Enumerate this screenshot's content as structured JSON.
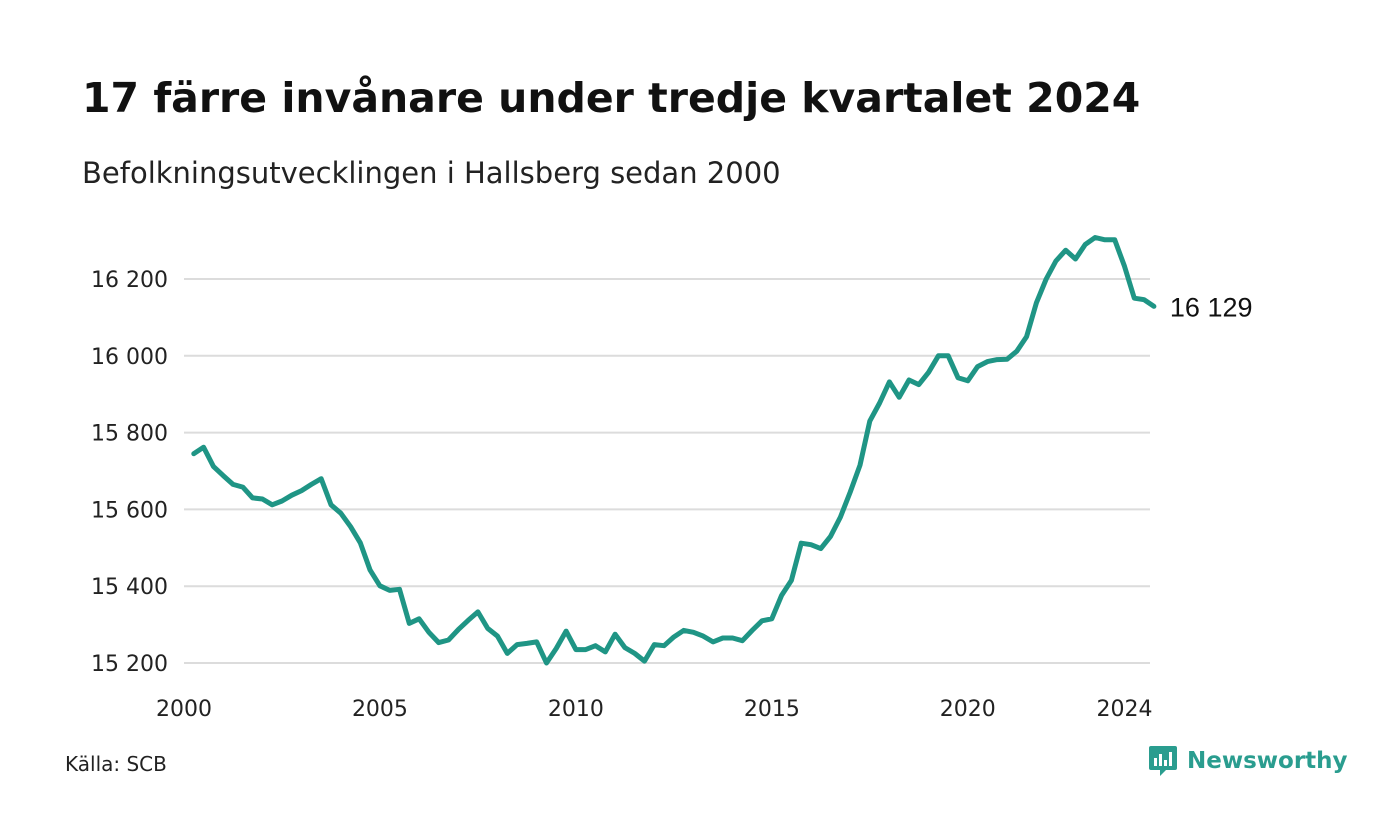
{
  "title": "17 färre invånare under tredje kvartalet 2024",
  "subtitle": "Befolkningsutvecklingen i Hallsberg sedan 2000",
  "source": "Källa: SCB",
  "brand": {
    "name": "Newsworthy",
    "icon": "newsworthy-logo-icon"
  },
  "colors": {
    "line": "#1f9585",
    "grid": "#dcdcdc",
    "brand": "#2a9d8f"
  },
  "chart_data": {
    "type": "line",
    "title": "17 färre invånare under tredje kvartalet 2024",
    "subtitle": "Befolkningsutvecklingen i Hallsberg sedan 2000",
    "xlabel": "",
    "ylabel": "",
    "x_unit": "year (quarterly points)",
    "xlim": [
      2000,
      2024.75
    ],
    "ylim": [
      15200,
      16310
    ],
    "x_ticks": [
      2000,
      2005,
      2010,
      2015,
      2020,
      2024
    ],
    "y_ticks": [
      15200,
      15400,
      15600,
      15800,
      16000,
      16200
    ],
    "y_tick_labels": [
      "15 200",
      "15 400",
      "15 600",
      "15 800",
      "16 000",
      "16 200"
    ],
    "grid": "horizontal",
    "end_label": "16 129",
    "series": [
      {
        "name": "",
        "x": [
          2000.25,
          2000.5,
          2000.75,
          2001,
          2001.25,
          2001.5,
          2001.75,
          2002,
          2002.25,
          2002.5,
          2002.75,
          2003,
          2003.25,
          2003.5,
          2003.75,
          2004,
          2004.25,
          2004.5,
          2004.75,
          2005,
          2005.25,
          2005.5,
          2005.75,
          2006,
          2006.25,
          2006.5,
          2006.75,
          2007,
          2007.25,
          2007.5,
          2007.75,
          2008,
          2008.25,
          2008.5,
          2008.75,
          2009,
          2009.25,
          2009.5,
          2009.75,
          2010,
          2010.25,
          2010.5,
          2010.75,
          2011,
          2011.25,
          2011.5,
          2011.75,
          2012,
          2012.25,
          2012.5,
          2012.75,
          2013,
          2013.25,
          2013.5,
          2013.75,
          2014,
          2014.25,
          2014.5,
          2014.75,
          2015,
          2015.25,
          2015.5,
          2015.75,
          2016,
          2016.25,
          2016.5,
          2016.75,
          2017,
          2017.25,
          2017.5,
          2017.75,
          2018,
          2018.25,
          2018.5,
          2018.75,
          2019,
          2019.25,
          2019.5,
          2019.75,
          2020,
          2020.25,
          2020.5,
          2020.75,
          2021,
          2021.25,
          2021.5,
          2021.75,
          2022,
          2022.25,
          2022.5,
          2022.75,
          2023,
          2023.25,
          2023.5,
          2023.75,
          2024,
          2024.25,
          2024.5,
          2024.75
        ],
        "values": [
          15745,
          15762,
          15712,
          15688,
          15665,
          15658,
          15630,
          15627,
          15612,
          15622,
          15637,
          15649,
          15665,
          15680,
          15612,
          15590,
          15555,
          15513,
          15442,
          15401,
          15389,
          15392,
          15303,
          15315,
          15280,
          15253,
          15260,
          15287,
          15311,
          15333,
          15290,
          15270,
          15225,
          15248,
          15251,
          15255,
          15200,
          15238,
          15283,
          15235,
          15235,
          15245,
          15229,
          15275,
          15240,
          15225,
          15205,
          15248,
          15245,
          15268,
          15285,
          15280,
          15270,
          15255,
          15265,
          15265,
          15258,
          15285,
          15310,
          15315,
          15376,
          15415,
          15512,
          15508,
          15498,
          15530,
          15580,
          15645,
          15715,
          15830,
          15877,
          15932,
          15892,
          15937,
          15925,
          15957,
          16000,
          16000,
          15943,
          15935,
          15972,
          15985,
          15990,
          15991,
          16012,
          16050,
          16138,
          16200,
          16247,
          16275,
          16252,
          16290,
          16308,
          16302,
          16302,
          16233,
          16150,
          16146,
          16129
        ]
      }
    ]
  }
}
